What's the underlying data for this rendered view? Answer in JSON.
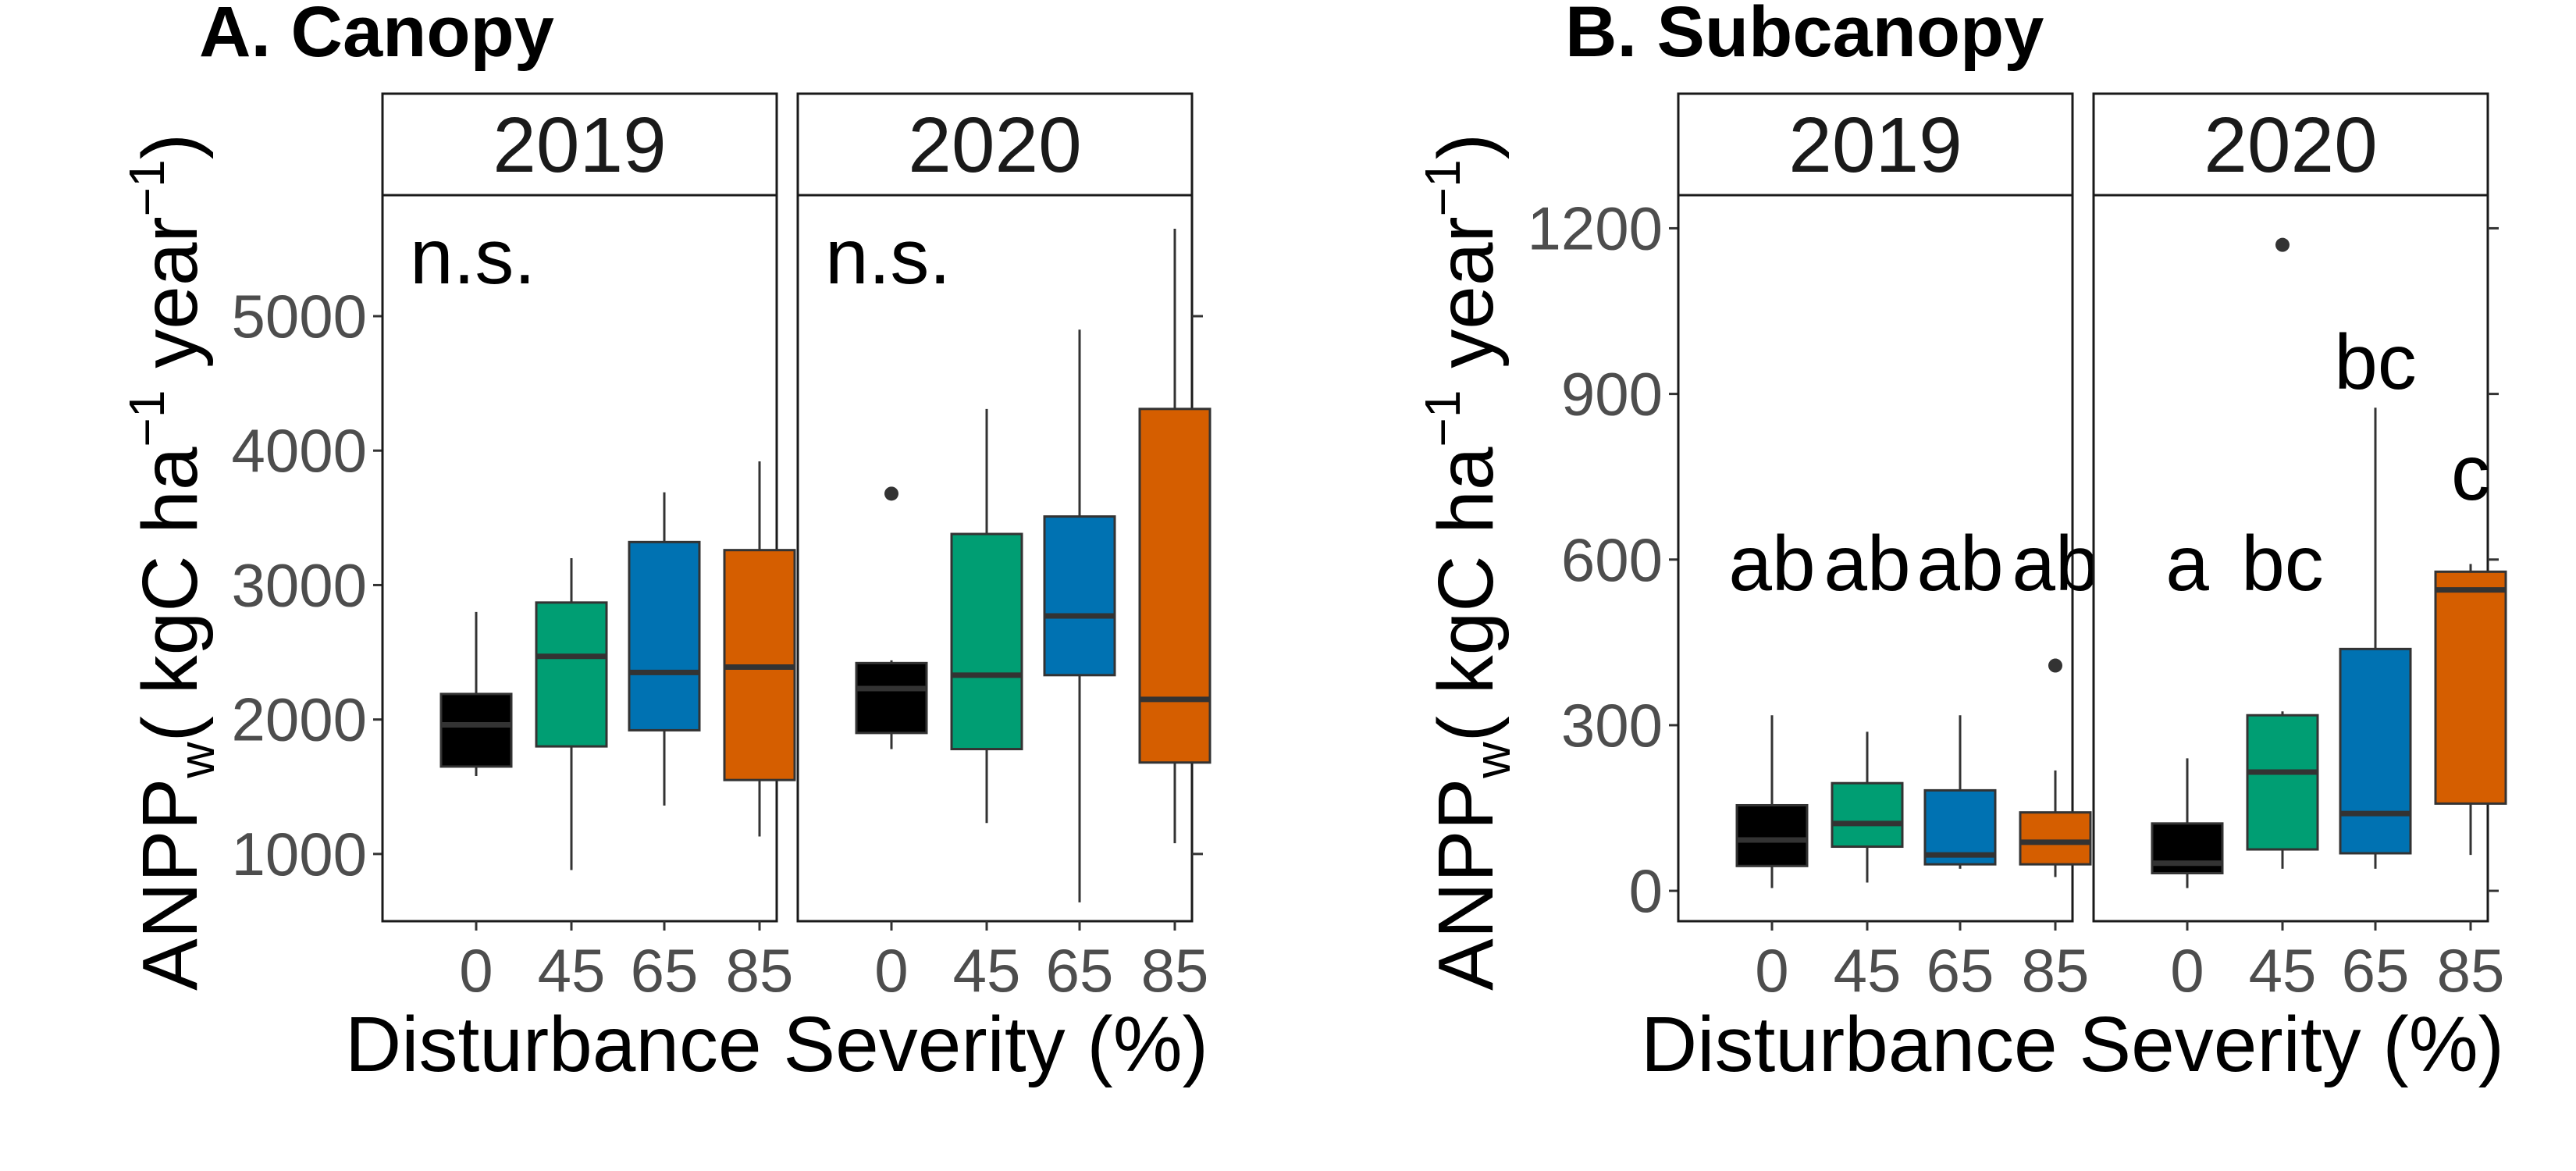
{
  "chart_data": [
    {
      "type": "boxplot",
      "title": "A. Canopy",
      "ylabel": {
        "main": "ANPP",
        "sub": "w",
        "unit_1": "( kgC ha",
        "sup_1": "−1",
        "unit_2": " year",
        "sup_2": "−1",
        "unit_3": ")"
      },
      "xlabel": "Disturbance Severity (%)",
      "ylim": [
        500,
        5900
      ],
      "yticks": [
        "1000",
        "2000",
        "3000",
        "4000",
        "5000"
      ],
      "grid": false,
      "panels": [
        {
          "strip": "2019",
          "categories": [
            "0",
            "45",
            "65",
            "85"
          ],
          "annotations": [
            {
              "text": "n.s."
            }
          ],
          "boxes": [
            {
              "category": "0",
              "whisker_low": 1580,
              "q1": 1650,
              "median": 1960,
              "q3": 2190,
              "whisker_high": 2800,
              "outliers": []
            },
            {
              "category": "45",
              "whisker_low": 880,
              "q1": 1800,
              "median": 2470,
              "q3": 2870,
              "whisker_high": 3200,
              "outliers": []
            },
            {
              "category": "65",
              "whisker_low": 1360,
              "q1": 1920,
              "median": 2350,
              "q3": 3320,
              "whisker_high": 3690,
              "outliers": []
            },
            {
              "category": "85",
              "whisker_low": 1130,
              "q1": 1550,
              "median": 2390,
              "q3": 3260,
              "whisker_high": 3920,
              "outliers": []
            }
          ]
        },
        {
          "strip": "2020",
          "categories": [
            "0",
            "45",
            "65",
            "85"
          ],
          "annotations": [
            {
              "text": "n.s."
            }
          ],
          "boxes": [
            {
              "category": "0",
              "whisker_low": 1780,
              "q1": 1900,
              "median": 2230,
              "q3": 2420,
              "whisker_high": 2440,
              "outliers": [
                3680
              ]
            },
            {
              "category": "45",
              "whisker_low": 1230,
              "q1": 1780,
              "median": 2330,
              "q3": 3380,
              "whisker_high": 4310,
              "outliers": []
            },
            {
              "category": "65",
              "whisker_low": 640,
              "q1": 2330,
              "median": 2770,
              "q3": 3510,
              "whisker_high": 4900,
              "outliers": []
            },
            {
              "category": "85",
              "whisker_low": 1080,
              "q1": 1680,
              "median": 2150,
              "q3": 4310,
              "whisker_high": 5650,
              "outliers": []
            }
          ]
        }
      ]
    },
    {
      "type": "boxplot",
      "title": "B. Subcanopy",
      "ylabel": {
        "main": "ANPP",
        "sub": "w",
        "unit_1": "( kgC ha",
        "sup_1": "−1",
        "unit_2": " year",
        "sup_2": "−1",
        "unit_3": ")"
      },
      "xlabel": "Disturbance Severity (%)",
      "ylim": [
        -55,
        1260
      ],
      "yticks": [
        "0",
        "300",
        "600",
        "900",
        "1200"
      ],
      "grid": false,
      "panels": [
        {
          "strip": "2019",
          "categories": [
            "0",
            "45",
            "65",
            "85"
          ],
          "annotations": [
            {
              "text": "ab",
              "category": "0"
            },
            {
              "text": "ab",
              "category": "45"
            },
            {
              "text": "ab",
              "category": "65"
            },
            {
              "text": "ab",
              "category": "85"
            }
          ],
          "boxes": [
            {
              "category": "0",
              "whisker_low": 5,
              "q1": 45,
              "median": 92,
              "q3": 155,
              "whisker_high": 318,
              "outliers": []
            },
            {
              "category": "45",
              "whisker_low": 15,
              "q1": 80,
              "median": 122,
              "q3": 195,
              "whisker_high": 288,
              "outliers": []
            },
            {
              "category": "65",
              "whisker_low": 40,
              "q1": 48,
              "median": 65,
              "q3": 182,
              "whisker_high": 318,
              "outliers": []
            },
            {
              "category": "85",
              "whisker_low": 25,
              "q1": 48,
              "median": 88,
              "q3": 142,
              "whisker_high": 218,
              "outliers": [
                408
              ]
            }
          ]
        },
        {
          "strip": "2020",
          "categories": [
            "0",
            "45",
            "65",
            "85"
          ],
          "annotations": [
            {
              "text": "a",
              "category": "0"
            },
            {
              "text": "bc",
              "category": "45"
            },
            {
              "text": "bc",
              "category": "65"
            },
            {
              "text": "c",
              "category": "85"
            }
          ],
          "boxes": [
            {
              "category": "0",
              "whisker_low": 5,
              "q1": 32,
              "median": 50,
              "q3": 122,
              "whisker_high": 240,
              "outliers": []
            },
            {
              "category": "45",
              "whisker_low": 40,
              "q1": 75,
              "median": 215,
              "q3": 318,
              "whisker_high": 325,
              "outliers": [
                1170
              ]
            },
            {
              "category": "65",
              "whisker_low": 40,
              "q1": 68,
              "median": 140,
              "q3": 438,
              "whisker_high": 875,
              "outliers": []
            },
            {
              "category": "85",
              "whisker_low": 65,
              "q1": 158,
              "median": 545,
              "q3": 578,
              "whisker_high": 592,
              "outliers": []
            }
          ]
        }
      ]
    }
  ],
  "colors": {
    "0": "#000000",
    "45": "#009E73",
    "65": "#0072B2",
    "85": "#D55E00",
    "median_line": "#333333",
    "whisker": "#333333",
    "outlier": "#333333"
  }
}
